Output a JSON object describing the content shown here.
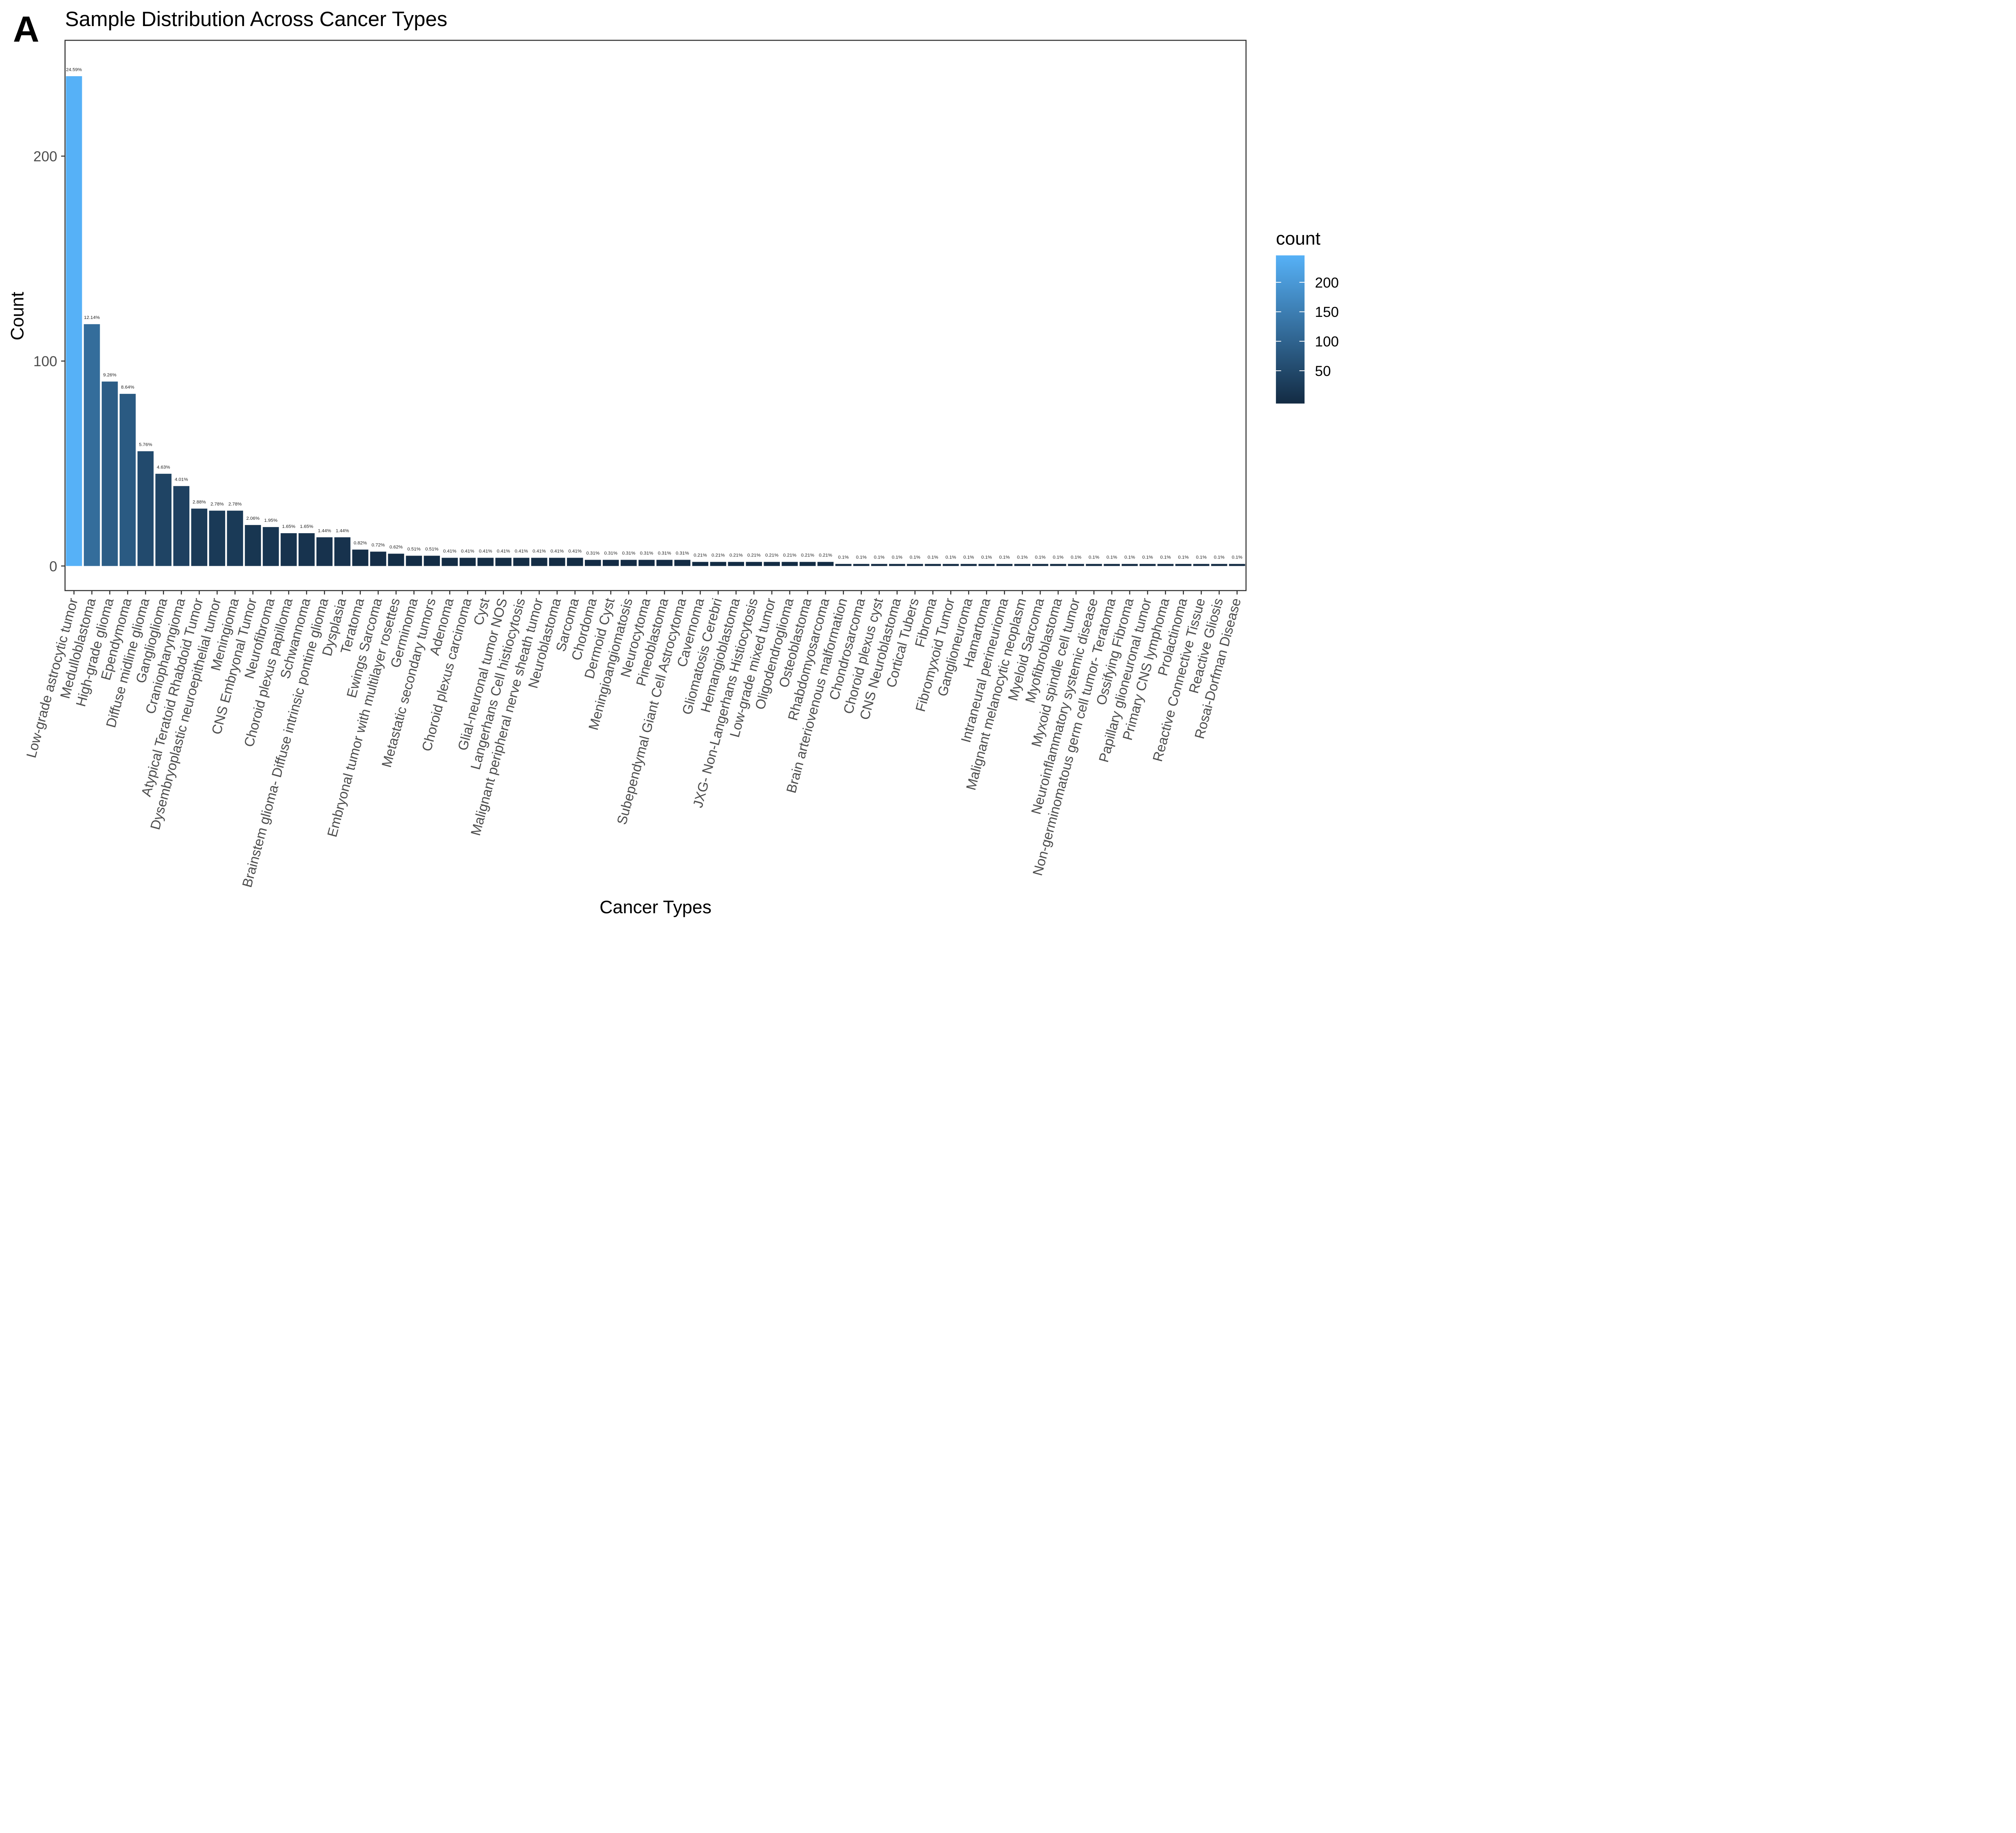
{
  "panel_label": "A",
  "chart_data": {
    "type": "bar",
    "title": "Sample Distribution Across Cancer Types",
    "x_label": "Cancer Types",
    "y_label": "Count",
    "categories": [
      "Low-grade astrocytic tumor",
      "Medulloblastoma",
      "High-grade glioma",
      "Ependymoma",
      "Diffuse midline glioma",
      "Ganglioglioma",
      "Craniopharyngioma",
      "Atypical Teratoid Rhabdoid Tumor",
      "Dysembryoplastic neuroepithelial tumor",
      "Meningioma",
      "CNS Embryonal Tumor",
      "Neurofibroma",
      "Choroid plexus papilloma",
      "Schwannoma",
      "Brainstem glioma- Diffuse intrinsic pontine glioma",
      "Dysplasia",
      "Teratoma",
      "Ewings Sarcoma",
      "Embryonal tumor with multilayer rosettes",
      "Germinoma",
      "Metastatic secondary tumors",
      "Adenoma",
      "Choroid plexus carcinoma",
      "Cyst",
      "Glial-neuronal tumor NOS",
      "Langerhans Cell histiocytosis",
      "Malignant peripheral nerve sheath tumor",
      "Neuroblastoma",
      "Sarcoma",
      "Chordoma",
      "Dermoid Cyst",
      "Meningioangiomatosis",
      "Neurocytoma",
      "Pineoblastoma",
      "Subependymal Giant Cell Astrocytoma",
      "Cavernoma",
      "Gliomatosis Cerebri",
      "Hemangioblastoma",
      "JXG- Non-Langerhans Histiocytosis",
      "Low-grade mixed tumor",
      "Oligodendroglioma",
      "Osteoblastoma",
      "Rhabdomyosarcoma",
      "Brain arteriovenous malformation",
      "Chondrosarcoma",
      "Choroid plexus cyst",
      "CNS Neuroblastoma",
      "Cortical Tubers",
      "Fibroma",
      "Fibromyxoid Tumor",
      "Ganglioneuroma",
      "Hamartoma",
      "Intraneural perineurioma",
      "Malignant melanocytic neoplasm",
      "Myeloid Sarcoma",
      "Myofibroblastoma",
      "Myxoid spindle cell tumor",
      "Neuroinflammatory systemic disease",
      "Non-germinomatous germ cell tumor- Teratoma",
      "Ossifying Fibroma",
      "Papillary glioneuronal tumor",
      "Primary CNS lymphoma",
      "Prolactinoma",
      "Reactive Connective Tissue",
      "Reactive Gliosis",
      "Rosai-Dorfman Disease"
    ],
    "values": [
      239,
      118,
      90,
      84,
      56,
      45,
      39,
      28,
      27,
      27,
      20,
      19,
      16,
      16,
      14,
      14,
      8,
      7,
      6,
      5,
      5,
      4,
      4,
      4,
      4,
      4,
      4,
      4,
      4,
      3,
      3,
      3,
      3,
      3,
      3,
      2,
      2,
      2,
      2,
      2,
      2,
      2,
      2,
      1,
      1,
      1,
      1,
      1,
      1,
      1,
      1,
      1,
      1,
      1,
      1,
      1,
      1,
      1,
      1,
      1,
      1,
      1,
      1,
      1,
      1,
      1
    ],
    "data_labels": [
      "24.59%",
      "12.14%",
      "9.26%",
      "8.64%",
      "5.76%",
      "4.63%",
      "4.01%",
      "2.88%",
      "2.78%",
      "2.78%",
      "2.06%",
      "1.95%",
      "1.65%",
      "1.65%",
      "1.44%",
      "1.44%",
      "0.82%",
      "0.72%",
      "0.62%",
      "0.51%",
      "0.51%",
      "0.41%",
      "0.41%",
      "0.41%",
      "0.41%",
      "0.41%",
      "0.41%",
      "0.41%",
      "0.41%",
      "0.31%",
      "0.31%",
      "0.31%",
      "0.31%",
      "0.31%",
      "0.31%",
      "0.21%",
      "0.21%",
      "0.21%",
      "0.21%",
      "0.21%",
      "0.21%",
      "0.21%",
      "0.21%",
      "0.1%",
      "0.1%",
      "0.1%",
      "0.1%",
      "0.1%",
      "0.1%",
      "0.1%",
      "0.1%",
      "0.1%",
      "0.1%",
      "0.1%",
      "0.1%",
      "0.1%",
      "0.1%",
      "0.1%",
      "0.1%",
      "0.1%",
      "0.1%",
      "0.1%",
      "0.1%",
      "0.1%",
      "0.1%",
      "0.1%"
    ],
    "ylim": [
      -12,
      256.5
    ],
    "yticks": [
      0,
      100,
      200
    ],
    "grid": false,
    "color_scale": {
      "title": "count",
      "low": "#132B43",
      "high": "#56B1F7",
      "limits": [
        1,
        239
      ],
      "ticks": [
        50,
        100,
        150,
        200
      ]
    }
  }
}
